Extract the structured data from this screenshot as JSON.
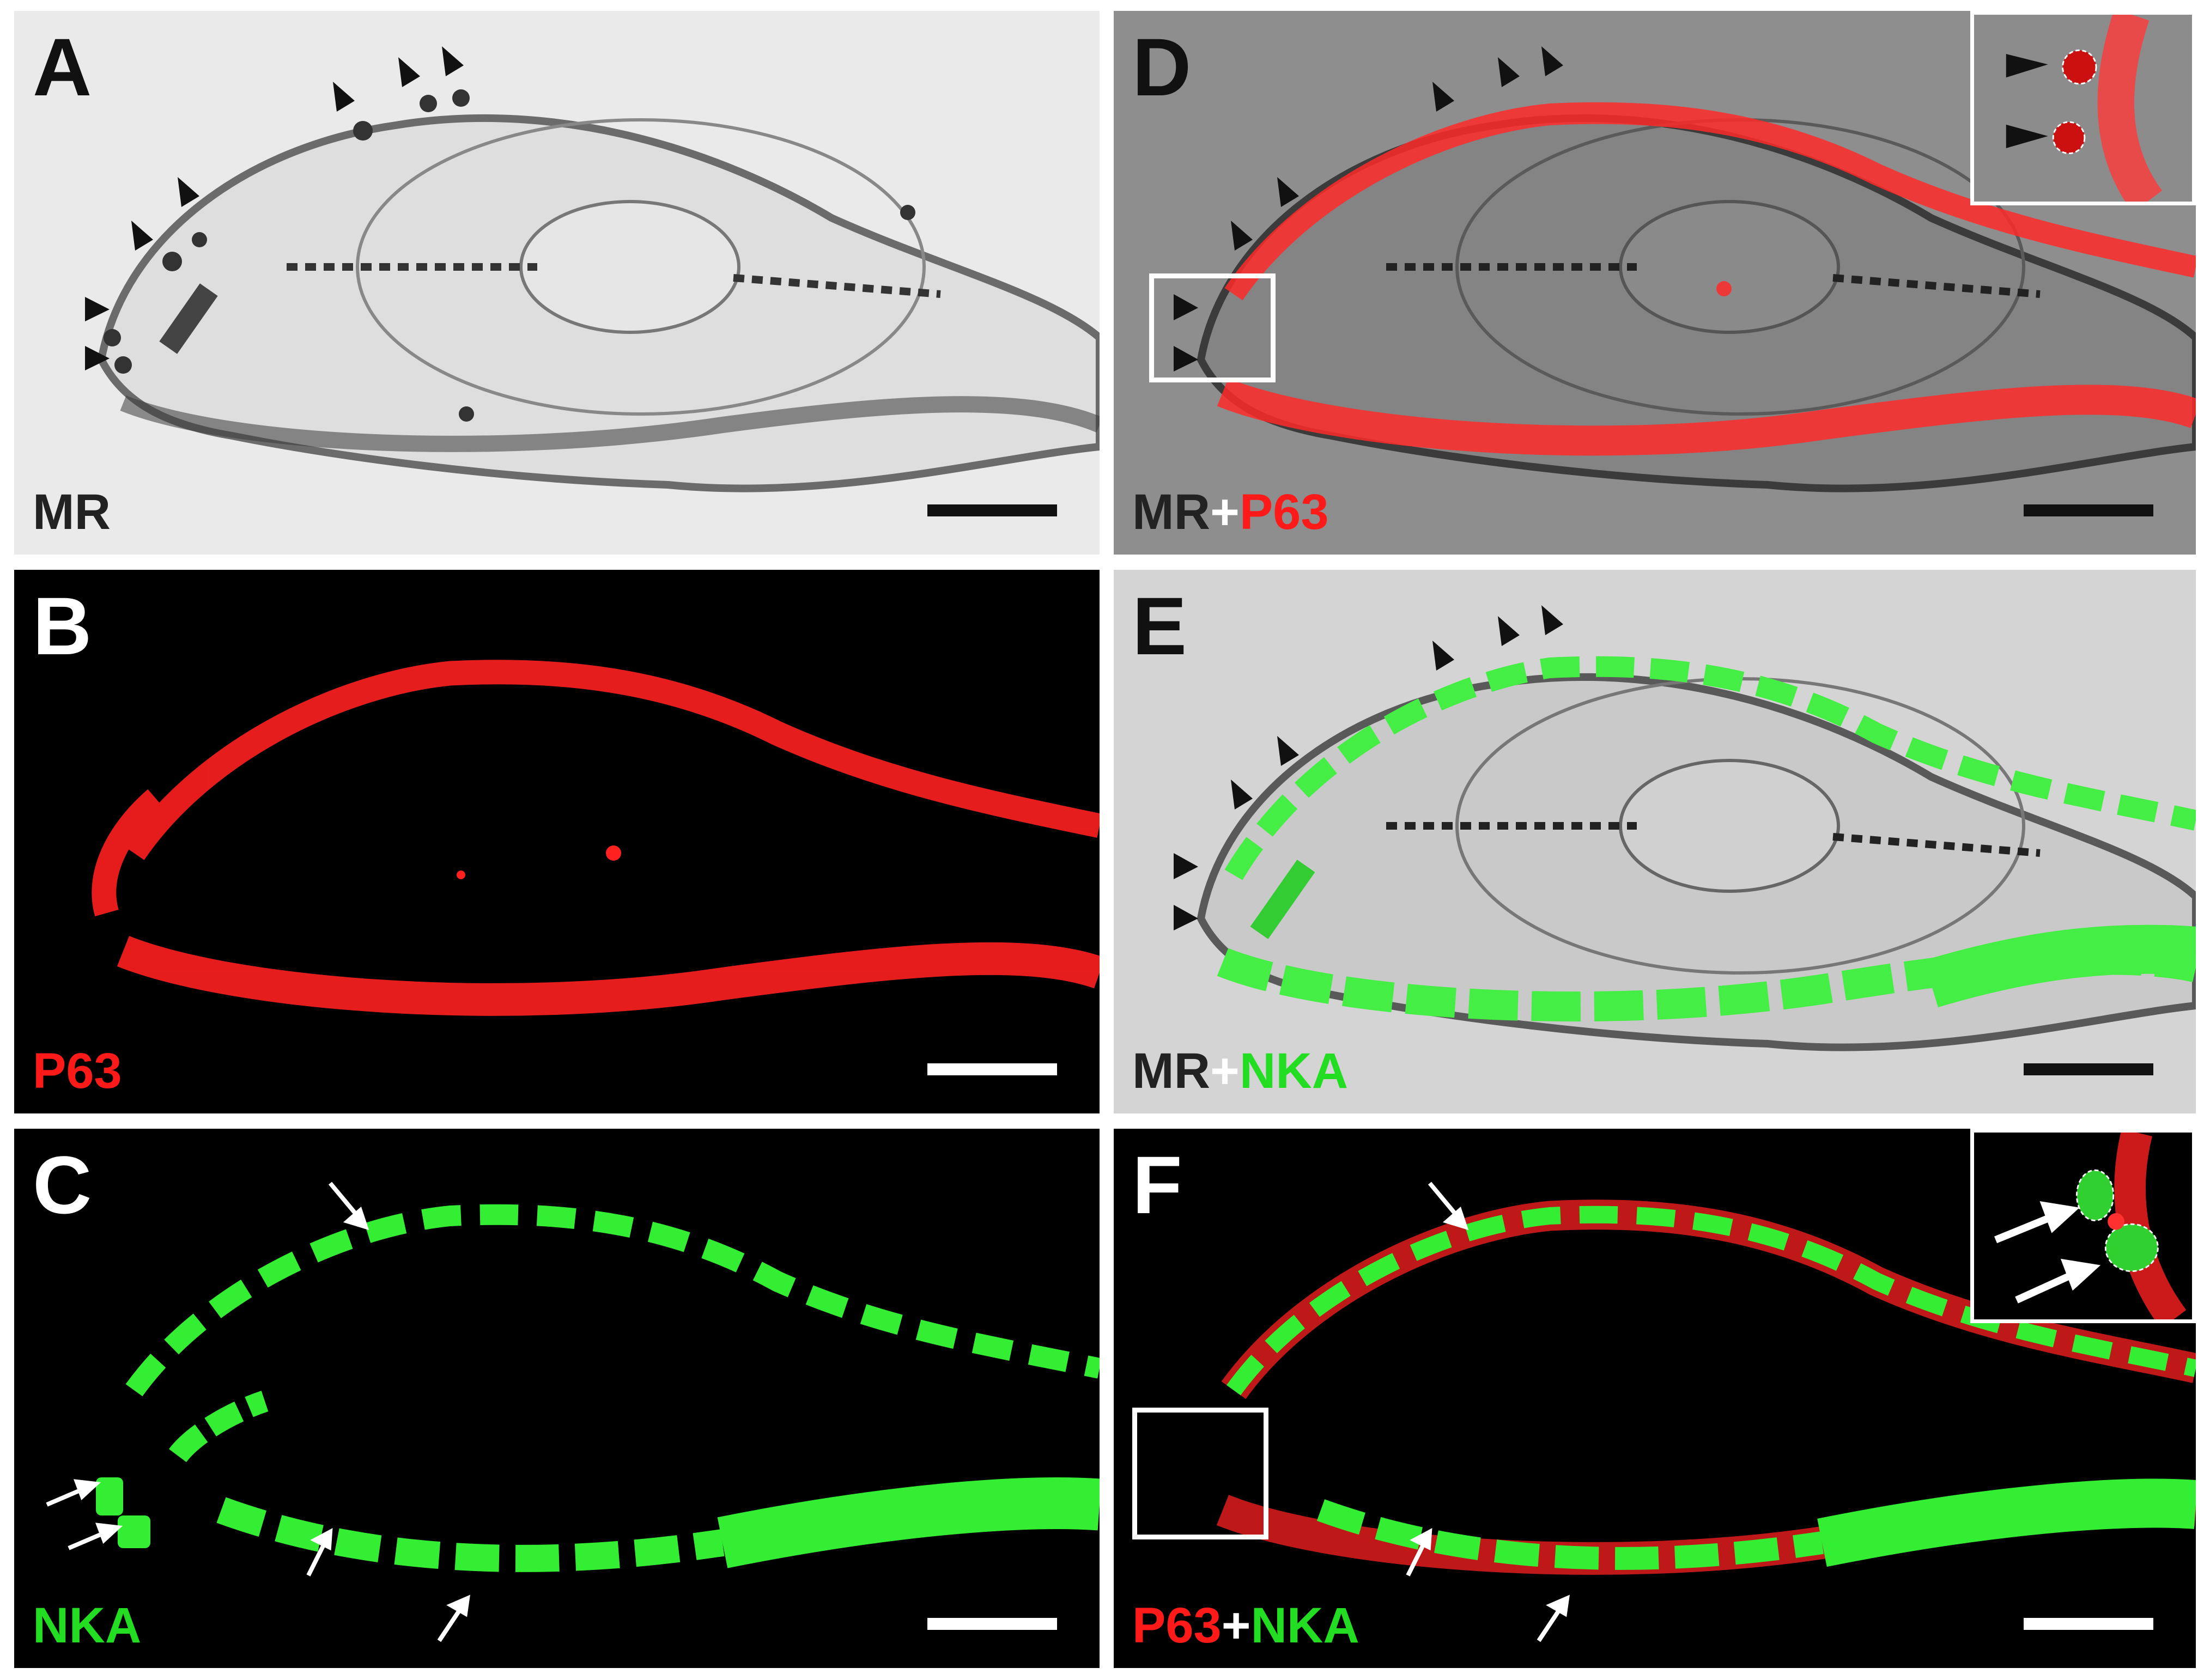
{
  "panels": {
    "A": {
      "letter": "A",
      "caption": [
        {
          "text": "MR",
          "color": "#222222"
        }
      ],
      "letter_color": "#111111"
    },
    "B": {
      "letter": "B",
      "caption": [
        {
          "text": "P63",
          "color": "#ff1a1a"
        }
      ],
      "letter_color": "#ffffff"
    },
    "C": {
      "letter": "C",
      "caption": [
        {
          "text": "NKA",
          "color": "#22dd22"
        }
      ],
      "letter_color": "#ffffff"
    },
    "D": {
      "letter": "D",
      "caption": [
        {
          "text": "MR",
          "color": "#222222"
        },
        {
          "text": "+",
          "color": "#ffffff"
        },
        {
          "text": "P63",
          "color": "#ff1a1a"
        }
      ],
      "letter_color": "#111111"
    },
    "E": {
      "letter": "E",
      "caption": [
        {
          "text": "MR",
          "color": "#222222"
        },
        {
          "text": "+",
          "color": "#ffffff"
        },
        {
          "text": "NKA",
          "color": "#22dd22"
        }
      ],
      "letter_color": "#111111"
    },
    "F": {
      "letter": "F",
      "caption": [
        {
          "text": "P63",
          "color": "#ff1a1a"
        },
        {
          "text": "+",
          "color": "#ffffff"
        },
        {
          "text": "NKA",
          "color": "#22dd22"
        }
      ],
      "letter_color": "#ffffff"
    }
  },
  "colors": {
    "red_stain": "#ff2020",
    "green_stain": "#33ee33",
    "mr_dark": "#333333",
    "scalebar_dark": "#111111",
    "scalebar_light": "#ffffff"
  }
}
